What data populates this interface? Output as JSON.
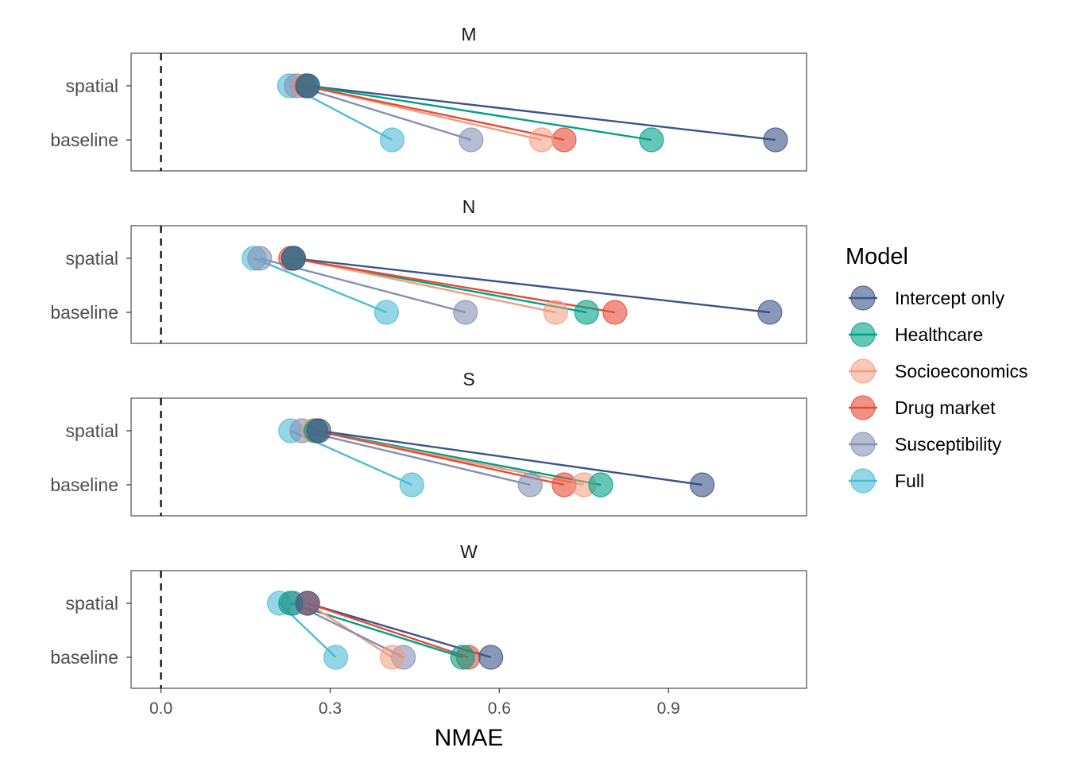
{
  "chart_data": {
    "type": "scatter",
    "subtype": "faceted dumbbell / slope",
    "title": "",
    "xlabel": "NMAE",
    "ylabel": "",
    "xlim": [
      -0.053,
      1.145
    ],
    "x_ticks": [
      "0.0",
      "0.3",
      "0.6",
      "0.9"
    ],
    "x_tick_values": [
      0.0,
      0.3,
      0.6,
      0.9
    ],
    "reference_line": {
      "x": 0.0,
      "style": "dashed"
    },
    "y_categories": [
      "spatial",
      "baseline"
    ],
    "grid": false,
    "legend": {
      "title": "Model",
      "position": "right",
      "entries": [
        {
          "name": "Intercept only",
          "color": "#3C5488"
        },
        {
          "name": "Healthcare",
          "color": "#00A087"
        },
        {
          "name": "Socioeconomics",
          "color": "#F39B7F"
        },
        {
          "name": "Drug market",
          "color": "#E64B35"
        },
        {
          "name": "Susceptibility",
          "color": "#8491B4"
        },
        {
          "name": "Full",
          "color": "#4DBBD5"
        }
      ]
    },
    "panels": [
      {
        "label": "M",
        "series": [
          {
            "name": "Intercept only",
            "spatial": 0.26,
            "baseline": 1.09
          },
          {
            "name": "Healthcare",
            "spatial": 0.26,
            "baseline": 0.87
          },
          {
            "name": "Socioeconomics",
            "spatial": 0.255,
            "baseline": 0.675
          },
          {
            "name": "Drug market",
            "spatial": 0.255,
            "baseline": 0.715
          },
          {
            "name": "Susceptibility",
            "spatial": 0.24,
            "baseline": 0.55
          },
          {
            "name": "Full",
            "spatial": 0.228,
            "baseline": 0.41
          }
        ]
      },
      {
        "label": "N",
        "series": [
          {
            "name": "Intercept only",
            "spatial": 0.235,
            "baseline": 1.08
          },
          {
            "name": "Healthcare",
            "spatial": 0.235,
            "baseline": 0.755
          },
          {
            "name": "Socioeconomics",
            "spatial": 0.235,
            "baseline": 0.7
          },
          {
            "name": "Drug market",
            "spatial": 0.23,
            "baseline": 0.805
          },
          {
            "name": "Susceptibility",
            "spatial": 0.175,
            "baseline": 0.54
          },
          {
            "name": "Full",
            "spatial": 0.165,
            "baseline": 0.4
          }
        ]
      },
      {
        "label": "S",
        "series": [
          {
            "name": "Intercept only",
            "spatial": 0.28,
            "baseline": 0.96
          },
          {
            "name": "Healthcare",
            "spatial": 0.275,
            "baseline": 0.78
          },
          {
            "name": "Socioeconomics",
            "spatial": 0.27,
            "baseline": 0.75
          },
          {
            "name": "Drug market",
            "spatial": 0.275,
            "baseline": 0.715
          },
          {
            "name": "Susceptibility",
            "spatial": 0.25,
            "baseline": 0.655
          },
          {
            "name": "Full",
            "spatial": 0.23,
            "baseline": 0.445
          }
        ]
      },
      {
        "label": "W",
        "series": [
          {
            "name": "Intercept only",
            "spatial": 0.26,
            "baseline": 0.585
          },
          {
            "name": "Healthcare",
            "spatial": 0.23,
            "baseline": 0.535
          },
          {
            "name": "Socioeconomics",
            "spatial": 0.26,
            "baseline": 0.41
          },
          {
            "name": "Drug market",
            "spatial": 0.26,
            "baseline": 0.545
          },
          {
            "name": "Susceptibility",
            "spatial": 0.235,
            "baseline": 0.43
          },
          {
            "name": "Full",
            "spatial": 0.21,
            "baseline": 0.31
          }
        ]
      }
    ]
  }
}
